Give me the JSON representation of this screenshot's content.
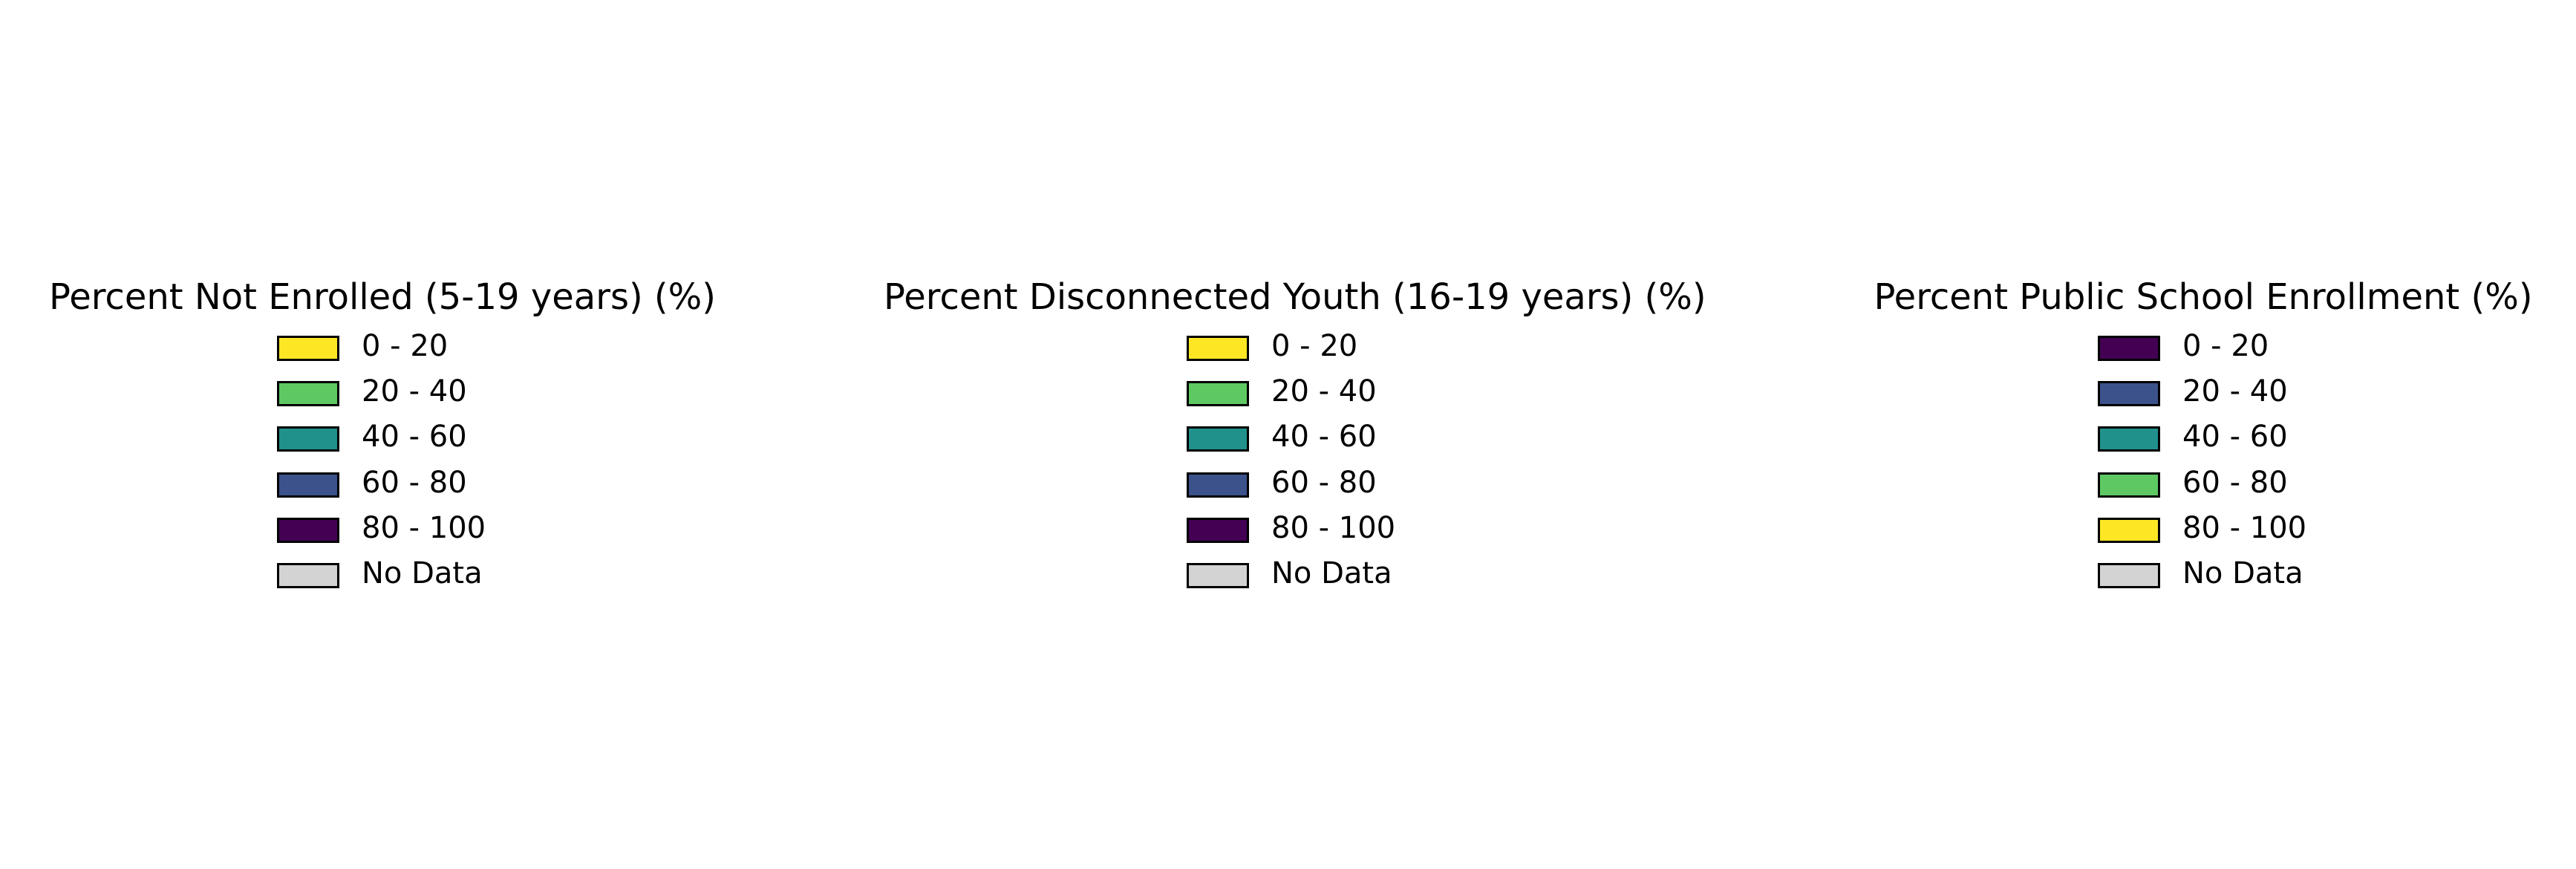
{
  "chart_data": [
    {
      "type": "legend",
      "title": "Percent Not Enrolled (5-19 years) (%)",
      "entries": [
        {
          "label": "0 - 20",
          "color": "#fde725"
        },
        {
          "label": "20 - 40",
          "color": "#5ec962"
        },
        {
          "label": "40 - 60",
          "color": "#21918c"
        },
        {
          "label": "60 - 80",
          "color": "#3b528b"
        },
        {
          "label": "80 - 100",
          "color": "#440154"
        },
        {
          "label": "No Data",
          "color": "#d3d3d3"
        }
      ]
    },
    {
      "type": "legend",
      "title": "Percent Disconnected Youth (16-19 years) (%)",
      "entries": [
        {
          "label": "0 - 20",
          "color": "#fde725"
        },
        {
          "label": "20 - 40",
          "color": "#5ec962"
        },
        {
          "label": "40 - 60",
          "color": "#21918c"
        },
        {
          "label": "60 - 80",
          "color": "#3b528b"
        },
        {
          "label": "80 - 100",
          "color": "#440154"
        },
        {
          "label": "No Data",
          "color": "#d3d3d3"
        }
      ]
    },
    {
      "type": "legend",
      "title": "Percent Public School Enrollment (%)",
      "entries": [
        {
          "label": "0 - 20",
          "color": "#440154"
        },
        {
          "label": "20 - 40",
          "color": "#3b528b"
        },
        {
          "label": "40 - 60",
          "color": "#21918c"
        },
        {
          "label": "60 - 80",
          "color": "#5ec962"
        },
        {
          "label": "80 - 100",
          "color": "#fde725"
        },
        {
          "label": "No Data",
          "color": "#d3d3d3"
        }
      ]
    }
  ]
}
